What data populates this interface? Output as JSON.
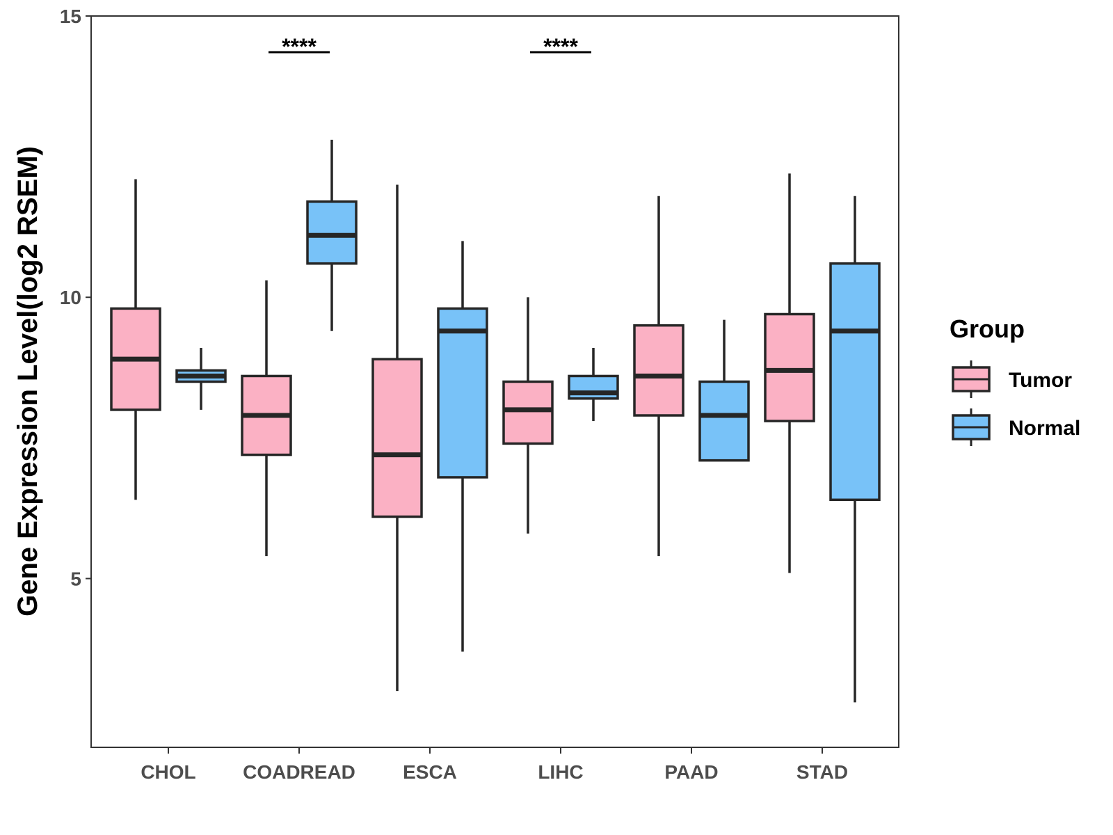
{
  "chart_data": {
    "type": "boxplot",
    "title": "",
    "xlabel": "",
    "ylabel": "Gene Expression Level(log2 RSEM)",
    "ylim": [
      2.0,
      15.0
    ],
    "yticks": [
      5,
      10,
      15
    ],
    "categories": [
      "CHOL",
      "COADREAD",
      "ESCA",
      "LIHC",
      "PAAD",
      "STAD"
    ],
    "legend": {
      "title": "Group",
      "position": "right"
    },
    "series": [
      {
        "name": "Tumor",
        "color": "#FBB1C4",
        "boxes": [
          {
            "min": 6.4,
            "q1": 8.0,
            "median": 8.9,
            "q3": 9.8,
            "max": 12.1
          },
          {
            "min": 5.4,
            "q1": 7.2,
            "median": 7.9,
            "q3": 8.6,
            "max": 10.3
          },
          {
            "min": 3.0,
            "q1": 6.1,
            "median": 7.2,
            "q3": 8.9,
            "max": 12.0
          },
          {
            "min": 5.8,
            "q1": 7.4,
            "median": 8.0,
            "q3": 8.5,
            "max": 10.0
          },
          {
            "min": 5.4,
            "q1": 7.9,
            "median": 8.6,
            "q3": 9.5,
            "max": 11.8
          },
          {
            "min": 5.1,
            "q1": 7.8,
            "median": 8.7,
            "q3": 9.7,
            "max": 12.2
          }
        ]
      },
      {
        "name": "Normal",
        "color": "#78C2F8",
        "boxes": [
          {
            "min": 8.0,
            "q1": 8.5,
            "median": 8.6,
            "q3": 8.7,
            "max": 9.1
          },
          {
            "min": 9.4,
            "q1": 10.6,
            "median": 11.1,
            "q3": 11.7,
            "max": 12.8
          },
          {
            "min": 3.7,
            "q1": 6.8,
            "median": 9.4,
            "q3": 9.8,
            "max": 11.0
          },
          {
            "min": 7.8,
            "q1": 8.2,
            "median": 8.3,
            "q3": 8.6,
            "max": 9.1
          },
          {
            "min": null,
            "q1": 7.1,
            "median": 7.9,
            "q3": 8.5,
            "max": 9.6
          },
          {
            "min": 2.8,
            "q1": 6.4,
            "median": 9.4,
            "q3": 10.6,
            "max": 11.8
          }
        ]
      }
    ],
    "annotations": [
      {
        "category": "COADREAD",
        "label": "****"
      },
      {
        "category": "LIHC",
        "label": "****"
      }
    ]
  }
}
